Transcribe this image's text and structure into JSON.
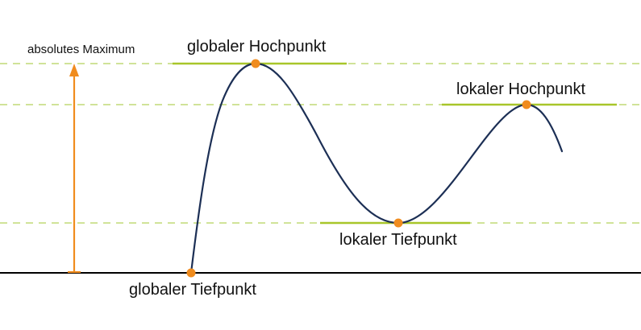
{
  "labels": {
    "absolute_maximum": "absolutes Maximum",
    "global_maximum": "globaler Hochpunkt",
    "local_maximum": "lokaler Hochpunkt",
    "local_minimum": "lokaler Tiefpunkt",
    "global_minimum": "globaler Tiefpunkt"
  },
  "colors": {
    "curve": "#1c2f55",
    "points": "#f08c1e",
    "tangent_lines": "#a8c62a",
    "dashed_guides": "#b4d25a",
    "arrow": "#f08c1e",
    "baseline": "#000000"
  }
}
